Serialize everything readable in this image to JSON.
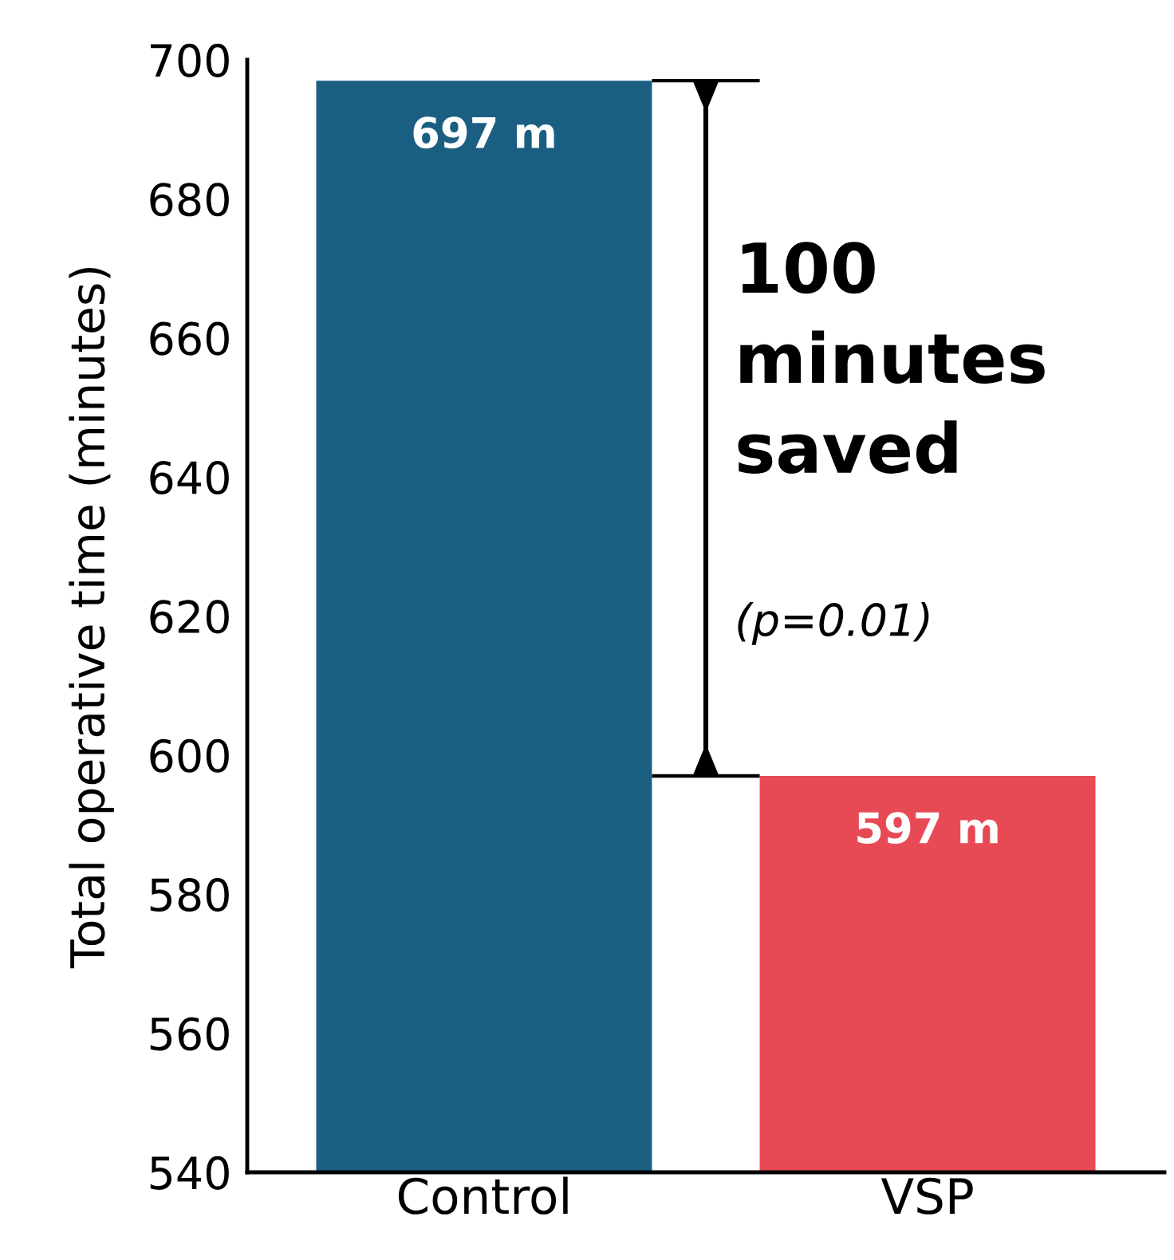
{
  "chart_data": {
    "type": "bar",
    "ylabel": "Total operative time (minutes)",
    "categories": [
      "Control",
      "VSP"
    ],
    "values": [
      697,
      597
    ],
    "colors": [
      "#1a5f82",
      "#e84a55"
    ],
    "value_labels": [
      "697 m",
      "597 m"
    ],
    "ylim": [
      540,
      700
    ],
    "yticks": [
      540,
      560,
      580,
      600,
      620,
      640,
      660,
      680,
      700
    ],
    "grid": false,
    "legend": false,
    "annotations": [
      "100\nminutes\nsaved",
      "(p=0.01)"
    ]
  }
}
